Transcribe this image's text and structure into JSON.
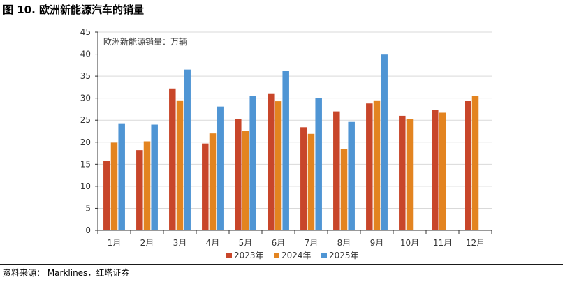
{
  "figure": {
    "title": "图 10. 欧洲新能源汽车的销量",
    "source": "资料来源： Marklines，红塔证券"
  },
  "chart_data": {
    "type": "bar",
    "title": "",
    "annotation": "欧洲新能源销量：万辆",
    "xlabel": "",
    "ylabel": "",
    "ylim": [
      0,
      45
    ],
    "yticks": [
      0,
      5,
      10,
      15,
      20,
      25,
      30,
      35,
      40,
      45
    ],
    "grid": true,
    "legend_position": "bottom",
    "categories": [
      "1月",
      "2月",
      "3月",
      "4月",
      "5月",
      "6月",
      "7月",
      "8月",
      "9月",
      "10月",
      "11月",
      "12月"
    ],
    "series": [
      {
        "name": "2023年",
        "color": "#C8462A",
        "values": [
          15.8,
          18.2,
          32.2,
          19.7,
          25.3,
          31.1,
          23.4,
          27.0,
          28.8,
          26.0,
          27.3,
          29.4
        ]
      },
      {
        "name": "2024年",
        "color": "#E38420",
        "values": [
          19.9,
          20.2,
          29.5,
          22.0,
          22.6,
          29.3,
          21.9,
          18.4,
          29.5,
          25.2,
          26.7,
          30.5
        ]
      },
      {
        "name": "2025年",
        "color": "#4F95D4",
        "values": [
          24.3,
          24.0,
          36.5,
          28.1,
          30.5,
          36.2,
          30.1,
          24.6,
          39.9,
          null,
          null,
          null
        ]
      }
    ]
  }
}
